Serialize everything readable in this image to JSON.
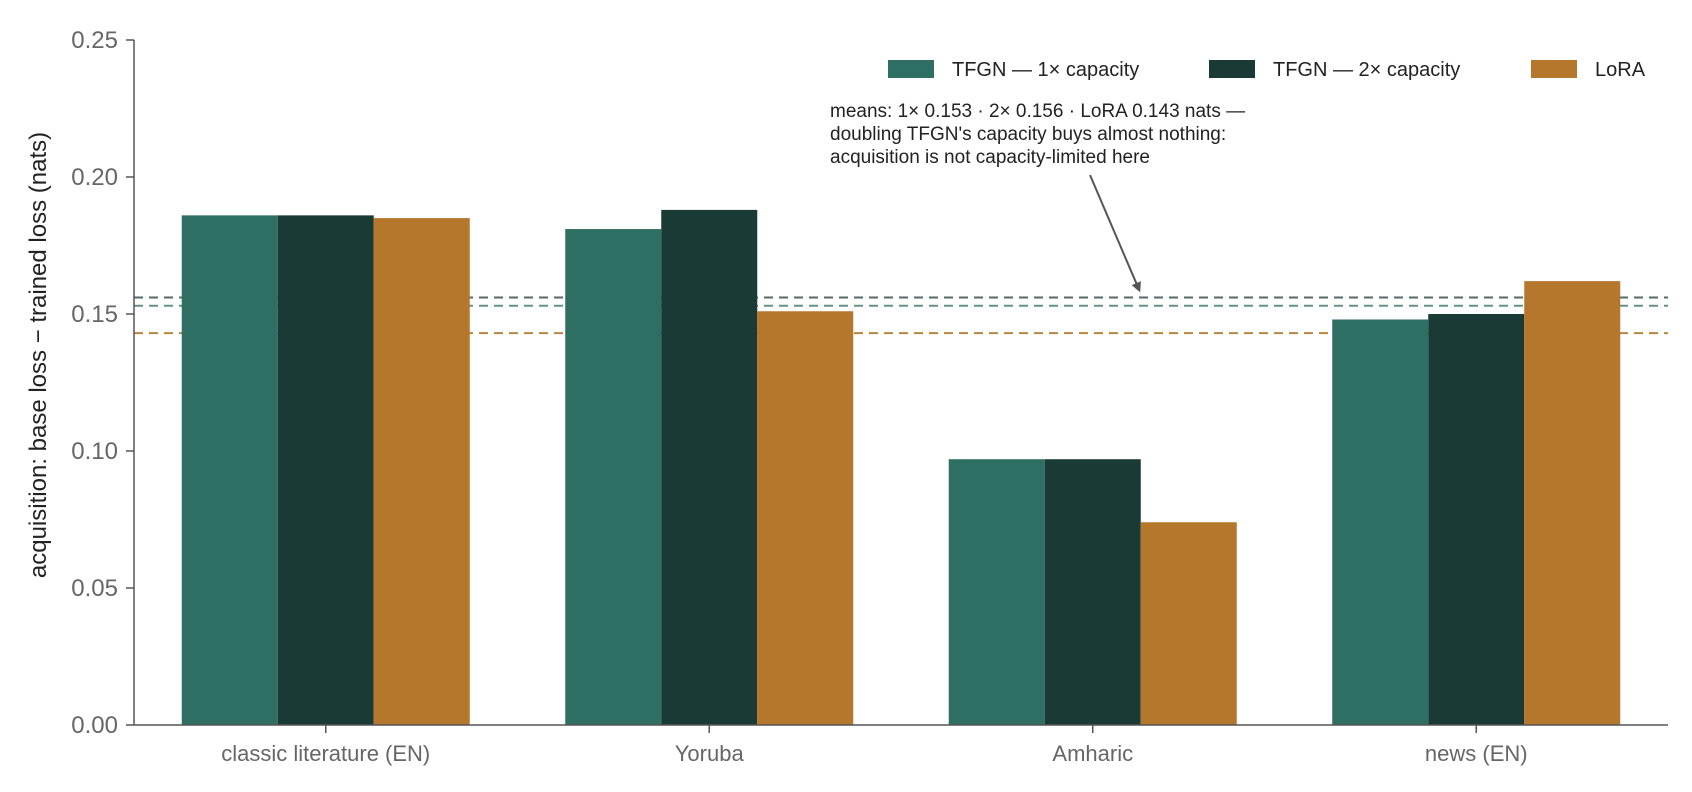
{
  "chart_data": {
    "type": "bar",
    "title": "",
    "xlabel": "",
    "ylabel": "acquisition: base loss − trained loss (nats)",
    "ylim": [
      0,
      0.25
    ],
    "yticks": [
      "0.00",
      "0.05",
      "0.10",
      "0.15",
      "0.20",
      "0.25"
    ],
    "grid": false,
    "legend_position": "top-right",
    "categories": [
      "classic literature (EN)",
      "Yoruba",
      "Amharic",
      "news (EN)"
    ],
    "series": [
      {
        "name": "TFGN — 1× capacity",
        "color": "#2f6e62",
        "values": [
          0.186,
          0.181,
          0.097,
          0.148
        ],
        "mean": 0.153
      },
      {
        "name": "TFGN — 2× capacity",
        "color": "#1a3a35",
        "values": [
          0.186,
          0.188,
          0.097,
          0.15
        ],
        "mean": 0.156
      },
      {
        "name": "LoRA",
        "color": "#b5772c",
        "values": [
          0.185,
          0.151,
          0.074,
          0.162
        ],
        "mean": 0.143
      }
    ],
    "annotation": {
      "lines": [
        "means: 1× 0.153 · 2× 0.156 · LoRA 0.143 nats —",
        "doubling TFGN's capacity buys almost nothing:",
        "acquisition is not capacity-limited here"
      ],
      "arrow_target_y": 0.156
    }
  }
}
